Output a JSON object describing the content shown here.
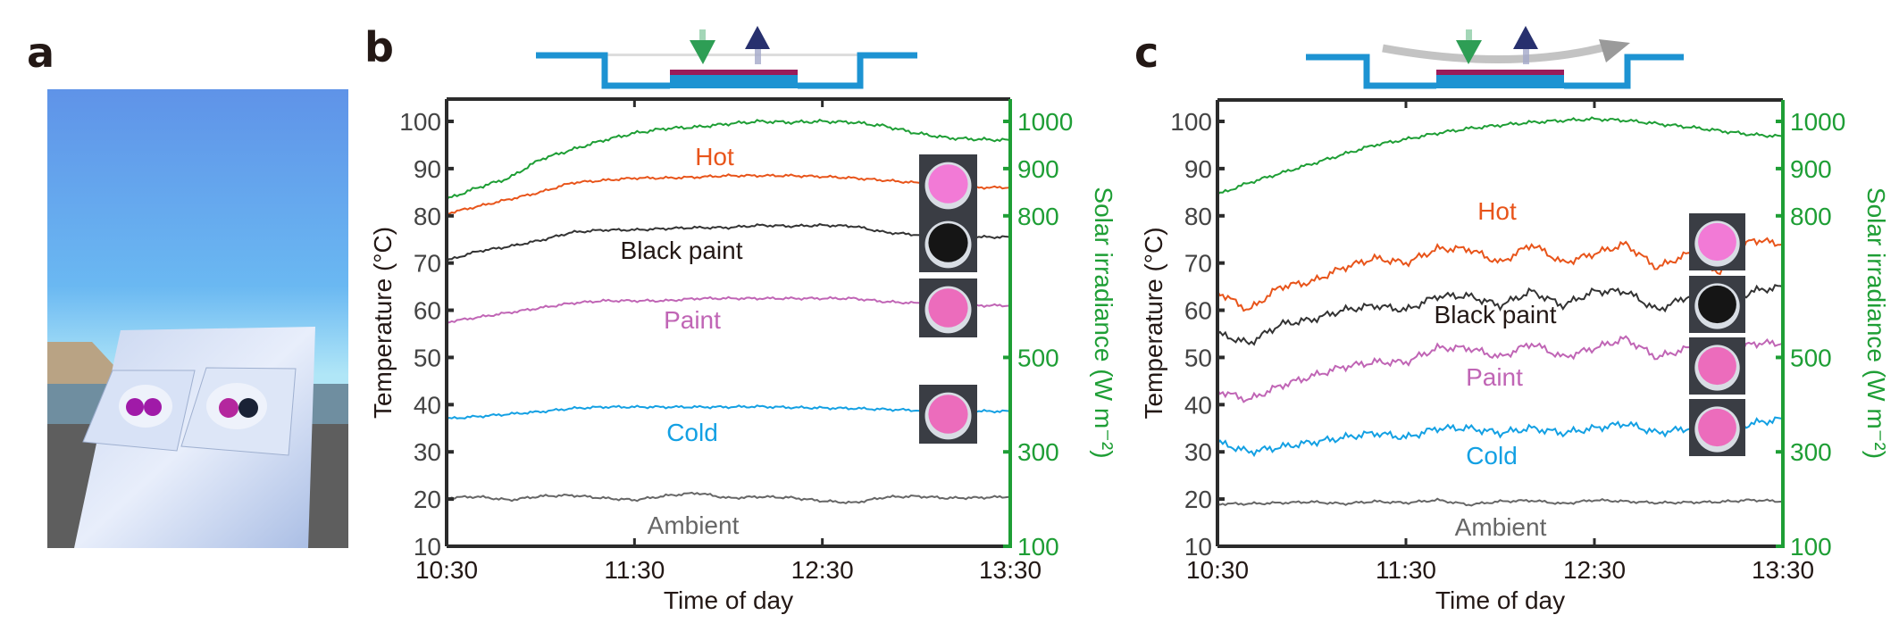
{
  "panels": {
    "a": {
      "letter": "a"
    },
    "b": {
      "letter": "b"
    },
    "c": {
      "letter": "c"
    }
  },
  "colors": {
    "hot": "#e8541a",
    "black_paint": "#333333",
    "paint": "#c065b5",
    "cold": "#13a0e3",
    "ambient": "#666666",
    "solar": "#1e9e35",
    "axis": "#2b2b2b",
    "diagram_blue": "#1d93d2",
    "diagram_magenta": "#9a1b5a",
    "arrow_green": "#2e9e55",
    "arrow_navy": "#27306e",
    "sample_pink": "#f27ad6",
    "sample_dark": "#151515",
    "inset_bg": "#3a3d44"
  },
  "chart_data": [
    {
      "id": "b",
      "type": "line",
      "title": "",
      "xlabel": "Time of day",
      "ylabel": "Temperature (°C)",
      "ylabel_right": "Solar irradiance (W m⁻²)",
      "x_unit": "minutes after 10:30",
      "xlim": [
        0,
        180
      ],
      "ylim": [
        10,
        100
      ],
      "ylim_right": [
        100,
        1000
      ],
      "xticks": [
        0,
        60,
        120,
        180
      ],
      "xtick_labels": [
        "10:30",
        "11:30",
        "12:30",
        "13:30"
      ],
      "yticks": [
        10,
        20,
        30,
        40,
        50,
        60,
        70,
        80,
        90,
        100
      ],
      "yticks_right": [
        100,
        300,
        500,
        800,
        900,
        1000
      ],
      "grid": false,
      "x": [
        0,
        10,
        20,
        30,
        40,
        50,
        60,
        70,
        80,
        90,
        100,
        110,
        120,
        130,
        140,
        150,
        160,
        170,
        180
      ],
      "series": [
        {
          "name": "Solar irradiance",
          "key": "solar",
          "axis": "right",
          "values": [
            835,
            860,
            880,
            920,
            940,
            960,
            975,
            985,
            988,
            995,
            1000,
            998,
            1000,
            998,
            990,
            975,
            965,
            962,
            960
          ]
        },
        {
          "name": "Hot",
          "key": "hot",
          "axis": "left",
          "label": "Hot",
          "values": [
            80.5,
            82,
            83.5,
            85,
            87,
            87.5,
            88,
            88,
            88.2,
            88.5,
            88.5,
            88.5,
            88.3,
            88,
            87.5,
            87,
            86.5,
            86,
            86
          ]
        },
        {
          "name": "Black paint",
          "key": "black_paint",
          "axis": "left",
          "label": "Black paint",
          "values": [
            70.5,
            72.5,
            73.5,
            74.8,
            76.5,
            77,
            77,
            77.3,
            77.5,
            77.5,
            78,
            77.8,
            78,
            77.8,
            76.5,
            76,
            75.8,
            75.5,
            75.5
          ]
        },
        {
          "name": "Paint",
          "key": "paint",
          "axis": "left",
          "label": "Paint",
          "values": [
            57.5,
            58.5,
            59.5,
            60.5,
            61.5,
            62,
            62,
            62,
            62.5,
            62.5,
            62.5,
            62.5,
            62.5,
            62.5,
            61.8,
            61.5,
            61.2,
            61,
            61
          ]
        },
        {
          "name": "Cold",
          "key": "cold",
          "axis": "left",
          "label": "Cold",
          "values": [
            37,
            37.5,
            38,
            38.5,
            39.2,
            39.5,
            39.5,
            39.5,
            39.5,
            39.5,
            39.6,
            39.4,
            39.3,
            39.2,
            39,
            38.8,
            38.7,
            38.6,
            38.6
          ]
        },
        {
          "name": "Ambient",
          "key": "ambient",
          "axis": "left",
          "label": "Ambient",
          "values": [
            20.3,
            20.5,
            19.8,
            20.6,
            20.8,
            20.2,
            19.8,
            20.7,
            21.3,
            20.2,
            20.5,
            20.3,
            19.6,
            19.2,
            20.4,
            20.6,
            20.2,
            20.3,
            20.5
          ]
        }
      ],
      "insets": [
        "pink-sample",
        "black-sample",
        "pink-sample",
        "pink-sample"
      ]
    },
    {
      "id": "c",
      "type": "line",
      "title": "",
      "xlabel": "Time of day",
      "ylabel": "Temperature (°C)",
      "ylabel_right": "Solar irradiance (W m⁻²)",
      "x_unit": "minutes after 10:30",
      "xlim": [
        0,
        180
      ],
      "ylim": [
        10,
        100
      ],
      "ylim_right": [
        100,
        1000
      ],
      "xticks": [
        0,
        60,
        120,
        180
      ],
      "xtick_labels": [
        "10:30",
        "11:30",
        "12:30",
        "13:30"
      ],
      "yticks": [
        10,
        20,
        30,
        40,
        50,
        60,
        70,
        80,
        90,
        100
      ],
      "yticks_right": [
        100,
        300,
        500,
        800,
        900,
        1000
      ],
      "grid": false,
      "x": [
        0,
        10,
        20,
        30,
        40,
        50,
        60,
        70,
        80,
        90,
        100,
        110,
        120,
        130,
        140,
        150,
        160,
        170,
        180
      ],
      "series": [
        {
          "name": "Solar irradiance",
          "key": "solar",
          "axis": "right",
          "values": [
            845,
            870,
            890,
            910,
            930,
            950,
            962,
            975,
            985,
            992,
            998,
            1002,
            1005,
            1002,
            995,
            988,
            980,
            972,
            968
          ]
        },
        {
          "name": "Hot",
          "key": "hot",
          "axis": "left",
          "label": "Hot",
          "values": [
            64,
            60,
            65,
            66,
            69,
            71,
            70,
            73,
            73,
            70,
            74,
            70,
            72,
            74,
            69,
            72,
            68,
            75,
            74
          ]
        },
        {
          "name": "Black paint",
          "key": "black_paint",
          "axis": "left",
          "label": "Black paint",
          "values": [
            55,
            53,
            57,
            58,
            60,
            61,
            60,
            63,
            63,
            61,
            64,
            61,
            64,
            64,
            60,
            63,
            60,
            64,
            65
          ]
        },
        {
          "name": "Paint",
          "key": "paint",
          "axis": "left",
          "label": "Paint",
          "values": [
            43,
            41,
            44,
            46,
            48,
            49,
            49,
            52,
            52,
            50,
            53,
            50,
            52,
            54,
            50,
            52,
            49,
            53,
            53
          ]
        },
        {
          "name": "Cold",
          "key": "cold",
          "axis": "left",
          "label": "Cold",
          "values": [
            32,
            30,
            31,
            32,
            33,
            34,
            33,
            35,
            35,
            34,
            35,
            34,
            35,
            36,
            34,
            35,
            34,
            36,
            37
          ]
        },
        {
          "name": "Ambient",
          "key": "ambient",
          "axis": "left",
          "label": "Ambient",
          "values": [
            19,
            19,
            19.2,
            19.4,
            19,
            19.5,
            19.2,
            19.8,
            18.8,
            19.5,
            19.7,
            19,
            19.8,
            19.5,
            19.2,
            19.3,
            19.4,
            19.8,
            19.5
          ]
        }
      ],
      "insets": [
        "pink-sample",
        "black-sample",
        "pink-sample",
        "pink-sample"
      ]
    }
  ]
}
